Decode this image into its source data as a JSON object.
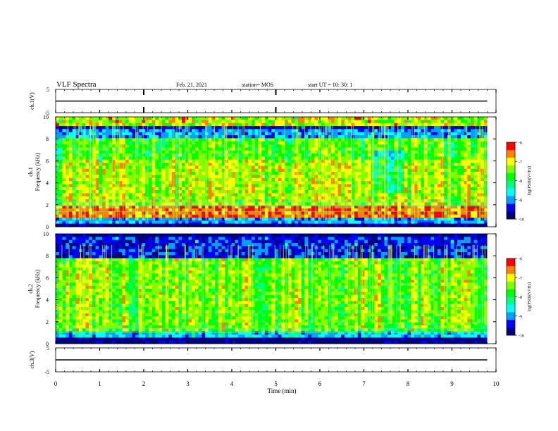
{
  "header": {
    "title": "VLF Spectra",
    "date": "Feb. 21, 2021",
    "station": "station= MOS",
    "start": "start  UT =   10: 30: 1"
  },
  "chart_data": [
    {
      "type": "line",
      "panel": "ch1-waveform",
      "ylabel": "ch.1(V)",
      "ylim": [
        -5,
        5
      ],
      "yticks": [
        5,
        -5
      ],
      "xlim": [
        0,
        10
      ],
      "x": [
        0,
        9.8
      ],
      "values": [
        0,
        0
      ]
    },
    {
      "type": "heatmap",
      "panel": "ch1-spectrogram",
      "ylabel": "ch.1\nFrequency (kHz)",
      "ylim": [
        0,
        10
      ],
      "yticks": [
        0,
        2,
        4,
        6,
        8,
        10
      ],
      "xlim": [
        0,
        10
      ],
      "data_xlim": [
        0,
        9.8
      ],
      "colorbar": {
        "label": "log(PSD)(V²/Hz)",
        "min": -10,
        "max": -6,
        "ticks": [
          -6,
          -7,
          -8,
          -9,
          -10
        ]
      }
    },
    {
      "type": "heatmap",
      "panel": "ch2-spectrogram",
      "ylabel": "ch.2\nFrequency (kHz)",
      "ylim": [
        0,
        10
      ],
      "yticks": [
        0,
        2,
        4,
        6,
        8,
        10
      ],
      "xlim": [
        0,
        10
      ],
      "data_xlim": [
        0,
        9.8
      ],
      "colorbar": {
        "label": "log(PSD)(V²/Hz)",
        "min": -10,
        "max": -6,
        "ticks": [
          -6,
          -7,
          -8,
          -9,
          -10
        ]
      }
    },
    {
      "type": "line",
      "panel": "ch3-waveform",
      "ylabel": "ch.3(V)",
      "ylim": [
        -5,
        5
      ],
      "yticks": [
        5,
        -5
      ],
      "xlim": [
        0,
        10
      ],
      "x": [
        0,
        9.8
      ],
      "values": [
        0,
        0
      ]
    }
  ],
  "xaxis": {
    "label": "Time (min)",
    "ticks": [
      0,
      1,
      2,
      3,
      4,
      5,
      6,
      7,
      8,
      9,
      10
    ]
  },
  "colors": {
    "colormap": [
      "#000080",
      "#0000ff",
      "#00a0ff",
      "#00ffff",
      "#00ff80",
      "#00ff00",
      "#80ff00",
      "#ffff00",
      "#ff8000",
      "#ff0000"
    ]
  }
}
